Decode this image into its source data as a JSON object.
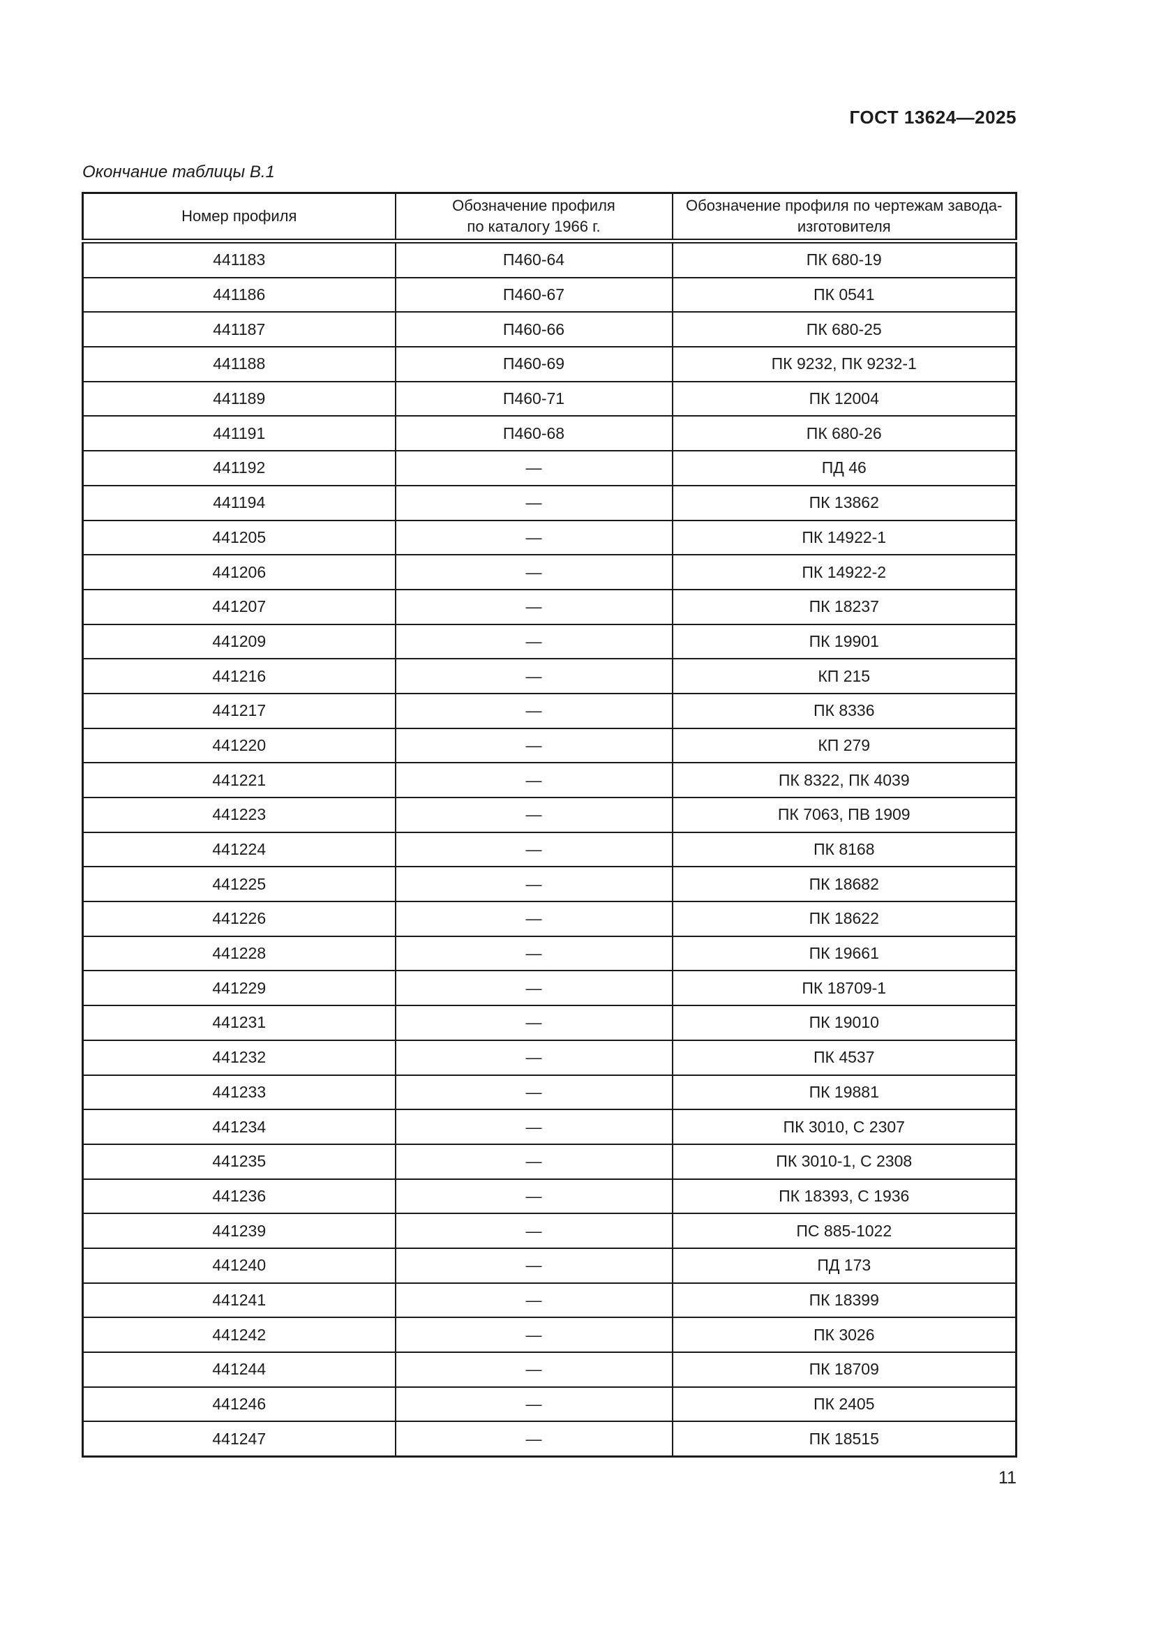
{
  "doc_header": "ГОСТ 13624—2025",
  "table_caption": "Окончание таблицы В.1",
  "page_number": "11",
  "table": {
    "columns": [
      "Номер профиля",
      "Обозначение профиля\nпо каталогу 1966 г.",
      "Обозначение профиля по чертежам завода-\nизготовителя"
    ],
    "rows": [
      [
        "441183",
        "П460-64",
        "ПК 680-19"
      ],
      [
        "441186",
        "П460-67",
        "ПК 0541"
      ],
      [
        "441187",
        "П460-66",
        "ПК 680-25"
      ],
      [
        "441188",
        "П460-69",
        "ПК 9232, ПК 9232-1"
      ],
      [
        "441189",
        "П460-71",
        "ПК 12004"
      ],
      [
        "441191",
        "П460-68",
        "ПК 680-26"
      ],
      [
        "441192",
        "—",
        "ПД 46"
      ],
      [
        "441194",
        "—",
        "ПК 13862"
      ],
      [
        "441205",
        "—",
        "ПК 14922-1"
      ],
      [
        "441206",
        "—",
        "ПК 14922-2"
      ],
      [
        "441207",
        "—",
        "ПК 18237"
      ],
      [
        "441209",
        "—",
        "ПК 19901"
      ],
      [
        "441216",
        "—",
        "КП 215"
      ],
      [
        "441217",
        "—",
        "ПК 8336"
      ],
      [
        "441220",
        "—",
        "КП 279"
      ],
      [
        "441221",
        "—",
        "ПК 8322, ПК 4039"
      ],
      [
        "441223",
        "—",
        "ПК 7063, ПВ 1909"
      ],
      [
        "441224",
        "—",
        "ПК 8168"
      ],
      [
        "441225",
        "—",
        "ПК 18682"
      ],
      [
        "441226",
        "—",
        "ПК 18622"
      ],
      [
        "441228",
        "—",
        "ПК 19661"
      ],
      [
        "441229",
        "—",
        "ПК 18709-1"
      ],
      [
        "441231",
        "—",
        "ПК 19010"
      ],
      [
        "441232",
        "—",
        "ПК 4537"
      ],
      [
        "441233",
        "—",
        "ПК 19881"
      ],
      [
        "441234",
        "—",
        "ПК 3010, С 2307"
      ],
      [
        "441235",
        "—",
        "ПК 3010-1, С 2308"
      ],
      [
        "441236",
        "—",
        "ПК 18393, С 1936"
      ],
      [
        "441239",
        "—",
        "ПС 885-1022"
      ],
      [
        "441240",
        "—",
        "ПД 173"
      ],
      [
        "441241",
        "—",
        "ПК 18399"
      ],
      [
        "441242",
        "—",
        "ПК 3026"
      ],
      [
        "441244",
        "—",
        "ПК 18709"
      ],
      [
        "441246",
        "—",
        "ПК 2405"
      ],
      [
        "441247",
        "—",
        "ПК 18515"
      ]
    ]
  },
  "colors": {
    "text": "#1c1c1c",
    "border": "#1b1b1b",
    "page_background": "#ffffff"
  }
}
